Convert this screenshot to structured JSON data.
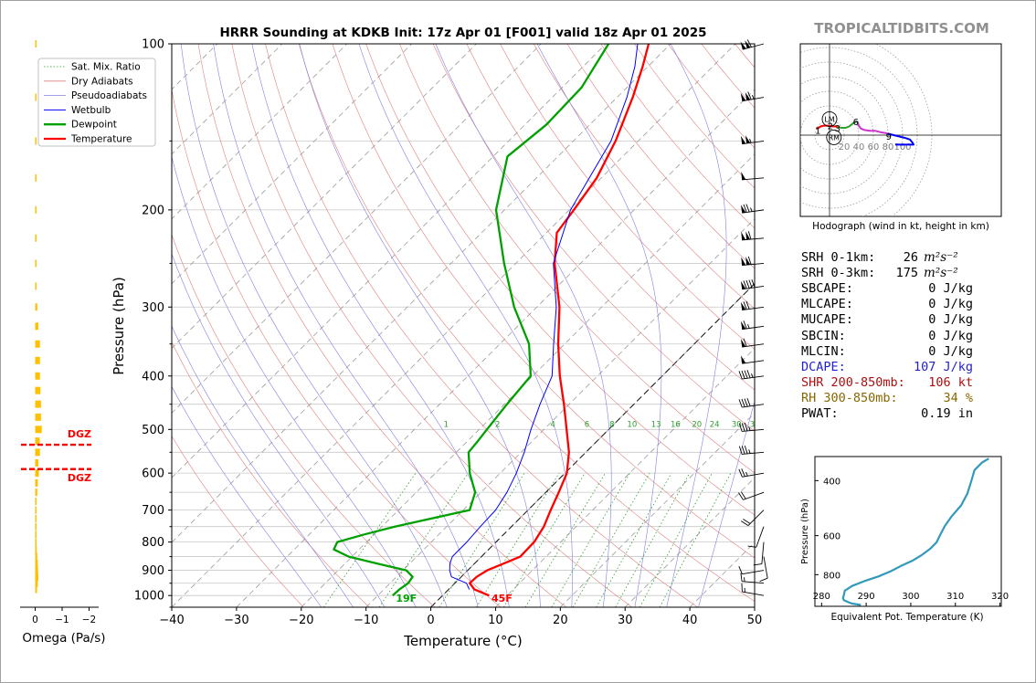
{
  "title": "HRRR Sounding at KDKB Init: 17z Apr 01 [F001] valid 18z Apr 01 2025",
  "brand": "TROPICALTIDBITS.COM",
  "chart_data": [
    {
      "type": "line",
      "chart": "skew-t",
      "xlabel": "Temperature (°C)",
      "ylabel": "Pressure (hPa)",
      "xlim": [
        -40,
        50
      ],
      "ylim": [
        1050,
        100
      ],
      "y_scale": "log",
      "skew_deg": 45,
      "x_ticks": [
        -40,
        -30,
        -20,
        -10,
        0,
        10,
        20,
        30,
        40,
        50
      ],
      "y_ticks": [
        100,
        200,
        300,
        400,
        500,
        600,
        700,
        800,
        900,
        1000
      ],
      "legend": [
        "Sat. Mix. Ratio",
        "Dry Adiabats",
        "Pseudoadiabats",
        "Wetbulb",
        "Dewpoint",
        "Temperature"
      ],
      "legend_position": "top-left",
      "mixing_ratio_labels": [
        "1",
        "2",
        "4",
        "6",
        "8",
        "10",
        "13",
        "16",
        "20",
        "24",
        "30",
        "36"
      ],
      "mixing_ratios": [
        1,
        2,
        4,
        6,
        8,
        10,
        13,
        16,
        20,
        24,
        30,
        36
      ],
      "dry_adiabats_K": [
        250,
        260,
        270,
        280,
        290,
        300,
        310,
        320,
        330,
        340,
        350,
        360,
        370,
        380,
        390,
        400,
        410,
        420,
        430,
        440,
        450,
        460,
        470,
        480,
        490,
        500,
        510,
        520
      ],
      "pseudoadiabats_C": [
        -20,
        -15,
        -10,
        -5,
        0,
        5,
        10,
        15,
        20,
        25,
        30,
        35,
        40
      ],
      "series": [
        {
          "name": "Temperature",
          "color": "#ff0000",
          "points": [
            [
              1000,
              7.2
            ],
            [
              975,
              4.0
            ],
            [
              950,
              2.3
            ],
            [
              925,
              2.4
            ],
            [
              900,
              3.0
            ],
            [
              875,
              4.5
            ],
            [
              850,
              6.0
            ],
            [
              800,
              5.9
            ],
            [
              750,
              5.0
            ],
            [
              700,
              3.5
            ],
            [
              650,
              2.0
            ],
            [
              600,
              0.3
            ],
            [
              550,
              -2.6
            ],
            [
              500,
              -6.5
            ],
            [
              450,
              -10.8
            ],
            [
              400,
              -15.8
            ],
            [
              350,
              -21.0
            ],
            [
              300,
              -26.5
            ],
            [
              250,
              -34.0
            ],
            [
              220,
              -38.4
            ],
            [
              200,
              -39.3
            ],
            [
              175,
              -40.7
            ],
            [
              150,
              -43.5
            ],
            [
              125,
              -47.6
            ],
            [
              110,
              -50.8
            ],
            [
              100,
              -53.4
            ]
          ]
        },
        {
          "name": "Dewpoint",
          "color": "#00a000",
          "points": [
            [
              1000,
              -7.7
            ],
            [
              975,
              -7.6
            ],
            [
              950,
              -7.2
            ],
            [
              925,
              -7.5
            ],
            [
              900,
              -9.5
            ],
            [
              875,
              -15.0
            ],
            [
              850,
              -20.5
            ],
            [
              825,
              -23.9
            ],
            [
              800,
              -24.5
            ],
            [
              775,
              -21.5
            ],
            [
              750,
              -18.0
            ],
            [
              700,
              -9.0
            ],
            [
              650,
              -10.9
            ],
            [
              600,
              -14.7
            ],
            [
              550,
              -18.1
            ],
            [
              525,
              -18.4
            ],
            [
              500,
              -18.8
            ],
            [
              450,
              -19.6
            ],
            [
              400,
              -20.3
            ],
            [
              350,
              -25.5
            ],
            [
              300,
              -33.5
            ],
            [
              250,
              -41.8
            ],
            [
              200,
              -51.3
            ],
            [
              160,
              -57.8
            ],
            [
              140,
              -56.7
            ],
            [
              120,
              -57.0
            ],
            [
              100,
              -59.6
            ]
          ]
        },
        {
          "name": "Wetbulb",
          "color": "#0000ff",
          "points": [
            [
              975,
              3.2
            ],
            [
              950,
              1.8
            ],
            [
              925,
              -1.5
            ],
            [
              900,
              -2.8
            ],
            [
              875,
              -3.8
            ],
            [
              850,
              -4.5
            ],
            [
              800,
              -4.5
            ],
            [
              750,
              -4.8
            ],
            [
              700,
              -5.0
            ],
            [
              650,
              -6.0
            ],
            [
              600,
              -7.5
            ],
            [
              550,
              -9.5
            ],
            [
              500,
              -12.0
            ],
            [
              450,
              -14.5
            ],
            [
              400,
              -17.0
            ],
            [
              350,
              -21.7
            ],
            [
              300,
              -27.0
            ],
            [
              250,
              -34.2
            ],
            [
              200,
              -39.8
            ],
            [
              150,
              -44.2
            ],
            [
              125,
              -48.5
            ],
            [
              110,
              -52.0
            ],
            [
              100,
              -55.1
            ]
          ]
        }
      ],
      "annotations": [
        "19F",
        "45F"
      ]
    },
    {
      "type": "bar",
      "chart": "omega-profile",
      "xlabel": "Omega (Pa/s)",
      "x_ticks": [
        "0",
        "−1",
        "−2"
      ],
      "annotations": [
        "DGZ",
        "DGZ"
      ],
      "dgz_pressures": [
        533,
        590
      ],
      "color": "#ffc000",
      "points": [
        [
          100,
          0.03
        ],
        [
          125,
          0.05
        ],
        [
          150,
          0.05
        ],
        [
          175,
          0.04
        ],
        [
          200,
          0.03
        ],
        [
          225,
          0.04
        ],
        [
          250,
          0.03
        ],
        [
          275,
          0.05
        ],
        [
          300,
          0.08
        ],
        [
          325,
          0.12
        ],
        [
          350,
          0.18
        ],
        [
          375,
          0.18
        ],
        [
          400,
          0.18
        ],
        [
          425,
          0.2
        ],
        [
          450,
          0.22
        ],
        [
          475,
          0.22
        ],
        [
          500,
          0.25
        ],
        [
          525,
          0.17
        ],
        [
          550,
          0.18
        ],
        [
          575,
          0.12
        ],
        [
          600,
          0.14
        ],
        [
          625,
          0.1
        ],
        [
          650,
          0.08
        ],
        [
          675,
          0.05
        ],
        [
          700,
          0.03
        ],
        [
          725,
          0.01
        ],
        [
          750,
          0.02
        ],
        [
          775,
          0.01
        ],
        [
          800,
          0.03
        ],
        [
          825,
          0.06
        ],
        [
          850,
          0.08
        ],
        [
          875,
          0.1
        ],
        [
          900,
          0.11
        ],
        [
          925,
          0.12
        ],
        [
          950,
          0.1
        ],
        [
          975,
          0.07
        ]
      ]
    },
    {
      "type": "line",
      "chart": "hodograph",
      "xlabel": "Hodograph (wind in kt, height in km)",
      "ring_labels": [
        "20",
        "40",
        "60",
        "80",
        "100"
      ],
      "height_labels": [
        "1",
        "2",
        "3",
        "6",
        "9"
      ],
      "markers": [
        "LM",
        "RM"
      ],
      "marker_uv": [
        [
          0,
          22
        ],
        [
          6,
          -3
        ]
      ],
      "segments": [
        {
          "color": "#ff0000",
          "points": [
            [
              -18,
              9
            ],
            [
              -15,
              10
            ],
            [
              -12,
              12
            ],
            [
              -8,
              13
            ],
            [
              -3,
              13
            ],
            [
              3,
              12
            ],
            [
              8,
              12
            ],
            [
              11,
              11
            ]
          ]
        },
        {
          "color": "#2ca02c",
          "points": [
            [
              11,
              11
            ],
            [
              17,
              10
            ],
            [
              22,
              10
            ],
            [
              27,
              12
            ],
            [
              32,
              16
            ],
            [
              36,
              18
            ],
            [
              38,
              19
            ]
          ]
        },
        {
          "color": "#cc33cc",
          "points": [
            [
              38,
              19
            ],
            [
              40,
              13
            ],
            [
              43,
              9
            ],
            [
              48,
              7
            ],
            [
              55,
              6
            ],
            [
              62,
              6
            ],
            [
              70,
              4
            ],
            [
              76,
              3
            ],
            [
              80,
              2
            ]
          ]
        },
        {
          "color": "#0000ff",
          "points": [
            [
              80,
              2
            ],
            [
              88,
              0
            ],
            [
              96,
              -2
            ],
            [
              104,
              -4
            ],
            [
              110,
              -6
            ],
            [
              114,
              -11
            ],
            [
              115,
              -13
            ],
            [
              107,
              -13
            ],
            [
              98,
              -13
            ],
            [
              90,
              -13
            ]
          ]
        }
      ]
    },
    {
      "type": "line",
      "chart": "theta-e-profile",
      "xlabel": "Equivalent Pot. Temperature (K)",
      "ylabel": "Pressure (hPa)",
      "x_ticks": [
        280,
        290,
        300,
        310,
        320
      ],
      "y_ticks": [
        400,
        600,
        800
      ],
      "xlim": [
        278.5,
        320.3
      ],
      "ylim": [
        1010,
        335
      ],
      "color": "#3399bb",
      "points": [
        [
          1000,
          288.8
        ],
        [
          990,
          286.8
        ],
        [
          980,
          286
        ],
        [
          965,
          285
        ],
        [
          950,
          284.8
        ],
        [
          930,
          285.0
        ],
        [
          900,
          285.2
        ],
        [
          870,
          286.8
        ],
        [
          840,
          289.5
        ],
        [
          810,
          292.8
        ],
        [
          780,
          295.5
        ],
        [
          750,
          297.8
        ],
        [
          720,
          300.5
        ],
        [
          690,
          302.6
        ],
        [
          660,
          304.4
        ],
        [
          630,
          305.8
        ],
        [
          600,
          306.5
        ],
        [
          560,
          307.6
        ],
        [
          520,
          309.2
        ],
        [
          480,
          311.3
        ],
        [
          440,
          312.7
        ],
        [
          400,
          313.6
        ],
        [
          370,
          314.3
        ],
        [
          350,
          316
        ],
        [
          340,
          317.5
        ]
      ]
    }
  ],
  "hodograph_title": "Hodograph (wind in kt, height in km)",
  "stats": [
    {
      "label": "SRH 0-1km:",
      "value": "26",
      "unit": "m²s⁻²",
      "color": "#000000"
    },
    {
      "label": "SRH 0-3km:",
      "value": "175",
      "unit": "m²s⁻²",
      "color": "#000000"
    },
    {
      "label": "SBCAPE:",
      "value": "0 J/kg",
      "unit": "",
      "color": "#000000"
    },
    {
      "label": "MLCAPE:",
      "value": "0 J/kg",
      "unit": "",
      "color": "#000000"
    },
    {
      "label": "MUCAPE:",
      "value": "0 J/kg",
      "unit": "",
      "color": "#000000"
    },
    {
      "label": "SBCIN:",
      "value": "0 J/kg",
      "unit": "",
      "color": "#000000"
    },
    {
      "label": "MLCIN:",
      "value": "0 J/kg",
      "unit": "",
      "color": "#000000"
    },
    {
      "label": "DCAPE:",
      "value": "107 J/kg",
      "unit": "",
      "color": "#2222cc"
    },
    {
      "label": "SHR 200-850mb:",
      "value": "106 kt",
      "unit": "",
      "color": "#aa1111"
    },
    {
      "label": "RH 300-850mb:",
      "value": "34 %",
      "unit": "",
      "color": "#886600"
    },
    {
      "label": "PWAT:",
      "value": "0.19 in",
      "unit": "",
      "color": "#000000"
    }
  ],
  "wind_barbs": [
    {
      "p": 100,
      "dir": 255,
      "spd": 110
    },
    {
      "p": 125,
      "dir": 260,
      "spd": 115
    },
    {
      "p": 150,
      "dir": 262,
      "spd": 105
    },
    {
      "p": 175,
      "dir": 265,
      "spd": 50
    },
    {
      "p": 200,
      "dir": 262,
      "spd": 75
    },
    {
      "p": 225,
      "dir": 265,
      "spd": 110
    },
    {
      "p": 250,
      "dir": 265,
      "spd": 110
    },
    {
      "p": 275,
      "dir": 262,
      "spd": 90
    },
    {
      "p": 300,
      "dir": 262,
      "spd": 70
    },
    {
      "p": 325,
      "dir": 262,
      "spd": 65
    },
    {
      "p": 350,
      "dir": 262,
      "spd": 60
    },
    {
      "p": 375,
      "dir": 262,
      "spd": 50
    },
    {
      "p": 400,
      "dir": 262,
      "spd": 45
    },
    {
      "p": 450,
      "dir": 262,
      "spd": 40
    },
    {
      "p": 500,
      "dir": 265,
      "spd": 35
    },
    {
      "p": 550,
      "dir": 265,
      "spd": 35
    },
    {
      "p": 600,
      "dir": 260,
      "spd": 25
    },
    {
      "p": 650,
      "dir": 250,
      "spd": 20
    },
    {
      "p": 700,
      "dir": 225,
      "spd": 20
    },
    {
      "p": 750,
      "dir": 200,
      "spd": 10
    },
    {
      "p": 800,
      "dir": 185,
      "spd": 10
    },
    {
      "p": 850,
      "dir": 170,
      "spd": 10
    },
    {
      "p": 900,
      "dir": 260,
      "spd": 10
    },
    {
      "p": 950,
      "dir": 275,
      "spd": 15
    },
    {
      "p": 1000,
      "dir": 280,
      "spd": 15
    }
  ]
}
